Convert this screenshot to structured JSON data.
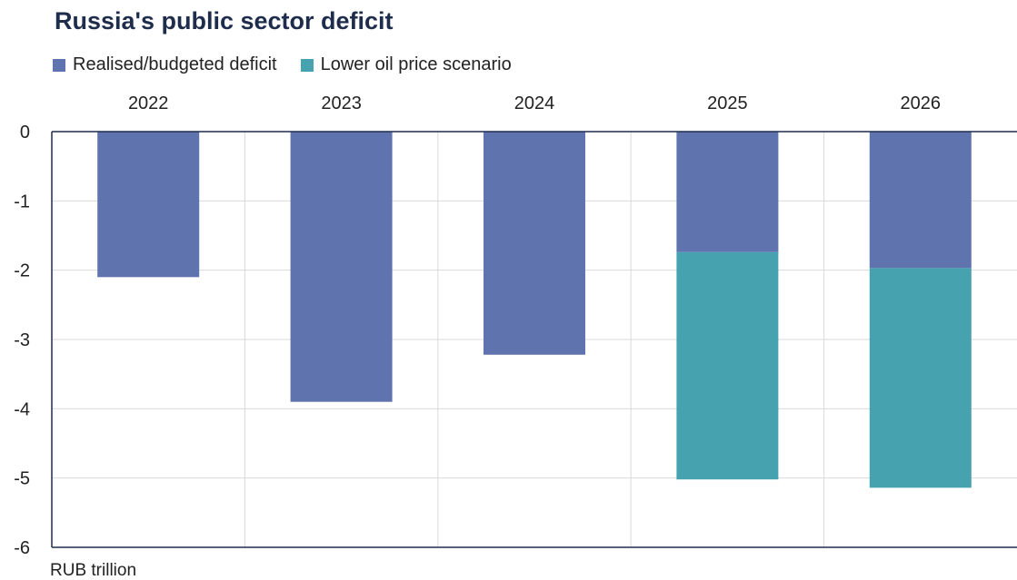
{
  "chart_data": {
    "type": "bar",
    "title": "Russia's public sector deficit",
    "unit_label": "RUB trillion",
    "categories": [
      "2022",
      "2023",
      "2024",
      "2025",
      "2026"
    ],
    "series": [
      {
        "name": "Realised/budgeted deficit",
        "color": "#5f73ae",
        "values": [
          -2.1,
          -3.9,
          -3.22,
          -1.74,
          -1.97
        ]
      },
      {
        "name": "Lower oil price scenario",
        "color": "#47a2b0",
        "values": [
          null,
          null,
          null,
          -3.28,
          -3.17
        ]
      }
    ],
    "stacked": true,
    "ylim": [
      -6,
      0
    ],
    "yticks": [
      0,
      -1,
      -2,
      -3,
      -4,
      -5,
      -6
    ],
    "ytick_labels": [
      "0",
      "-1",
      "-2",
      "-3",
      "-4",
      "-5",
      "-6"
    ],
    "x_axis_position": "top",
    "legend_position": "top-left",
    "grid": true
  }
}
